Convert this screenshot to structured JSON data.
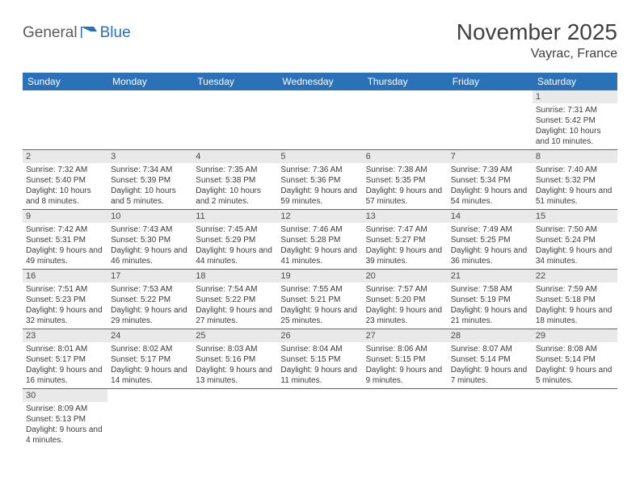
{
  "logo": {
    "part1": "General",
    "part2": "Blue"
  },
  "title": "November 2025",
  "location": "Vayrac, France",
  "colors": {
    "header_bg": "#2a71b8",
    "header_text": "#ffffff",
    "daynum_bg": "#e9e9e9",
    "body_text": "#3a3a3a",
    "page_bg": "#ffffff",
    "cell_border": "#2a71b8"
  },
  "weekdays": [
    "Sunday",
    "Monday",
    "Tuesday",
    "Wednesday",
    "Thursday",
    "Friday",
    "Saturday"
  ],
  "grid": [
    [
      null,
      null,
      null,
      null,
      null,
      null,
      {
        "n": "1",
        "sunrise": "7:31 AM",
        "sunset": "5:42 PM",
        "daylight": "10 hours and 10 minutes."
      }
    ],
    [
      {
        "n": "2",
        "sunrise": "7:32 AM",
        "sunset": "5:40 PM",
        "daylight": "10 hours and 8 minutes."
      },
      {
        "n": "3",
        "sunrise": "7:34 AM",
        "sunset": "5:39 PM",
        "daylight": "10 hours and 5 minutes."
      },
      {
        "n": "4",
        "sunrise": "7:35 AM",
        "sunset": "5:38 PM",
        "daylight": "10 hours and 2 minutes."
      },
      {
        "n": "5",
        "sunrise": "7:36 AM",
        "sunset": "5:36 PM",
        "daylight": "9 hours and 59 minutes."
      },
      {
        "n": "6",
        "sunrise": "7:38 AM",
        "sunset": "5:35 PM",
        "daylight": "9 hours and 57 minutes."
      },
      {
        "n": "7",
        "sunrise": "7:39 AM",
        "sunset": "5:34 PM",
        "daylight": "9 hours and 54 minutes."
      },
      {
        "n": "8",
        "sunrise": "7:40 AM",
        "sunset": "5:32 PM",
        "daylight": "9 hours and 51 minutes."
      }
    ],
    [
      {
        "n": "9",
        "sunrise": "7:42 AM",
        "sunset": "5:31 PM",
        "daylight": "9 hours and 49 minutes."
      },
      {
        "n": "10",
        "sunrise": "7:43 AM",
        "sunset": "5:30 PM",
        "daylight": "9 hours and 46 minutes."
      },
      {
        "n": "11",
        "sunrise": "7:45 AM",
        "sunset": "5:29 PM",
        "daylight": "9 hours and 44 minutes."
      },
      {
        "n": "12",
        "sunrise": "7:46 AM",
        "sunset": "5:28 PM",
        "daylight": "9 hours and 41 minutes."
      },
      {
        "n": "13",
        "sunrise": "7:47 AM",
        "sunset": "5:27 PM",
        "daylight": "9 hours and 39 minutes."
      },
      {
        "n": "14",
        "sunrise": "7:49 AM",
        "sunset": "5:25 PM",
        "daylight": "9 hours and 36 minutes."
      },
      {
        "n": "15",
        "sunrise": "7:50 AM",
        "sunset": "5:24 PM",
        "daylight": "9 hours and 34 minutes."
      }
    ],
    [
      {
        "n": "16",
        "sunrise": "7:51 AM",
        "sunset": "5:23 PM",
        "daylight": "9 hours and 32 minutes."
      },
      {
        "n": "17",
        "sunrise": "7:53 AM",
        "sunset": "5:22 PM",
        "daylight": "9 hours and 29 minutes."
      },
      {
        "n": "18",
        "sunrise": "7:54 AM",
        "sunset": "5:22 PM",
        "daylight": "9 hours and 27 minutes."
      },
      {
        "n": "19",
        "sunrise": "7:55 AM",
        "sunset": "5:21 PM",
        "daylight": "9 hours and 25 minutes."
      },
      {
        "n": "20",
        "sunrise": "7:57 AM",
        "sunset": "5:20 PM",
        "daylight": "9 hours and 23 minutes."
      },
      {
        "n": "21",
        "sunrise": "7:58 AM",
        "sunset": "5:19 PM",
        "daylight": "9 hours and 21 minutes."
      },
      {
        "n": "22",
        "sunrise": "7:59 AM",
        "sunset": "5:18 PM",
        "daylight": "9 hours and 18 minutes."
      }
    ],
    [
      {
        "n": "23",
        "sunrise": "8:01 AM",
        "sunset": "5:17 PM",
        "daylight": "9 hours and 16 minutes."
      },
      {
        "n": "24",
        "sunrise": "8:02 AM",
        "sunset": "5:17 PM",
        "daylight": "9 hours and 14 minutes."
      },
      {
        "n": "25",
        "sunrise": "8:03 AM",
        "sunset": "5:16 PM",
        "daylight": "9 hours and 13 minutes."
      },
      {
        "n": "26",
        "sunrise": "8:04 AM",
        "sunset": "5:15 PM",
        "daylight": "9 hours and 11 minutes."
      },
      {
        "n": "27",
        "sunrise": "8:06 AM",
        "sunset": "5:15 PM",
        "daylight": "9 hours and 9 minutes."
      },
      {
        "n": "28",
        "sunrise": "8:07 AM",
        "sunset": "5:14 PM",
        "daylight": "9 hours and 7 minutes."
      },
      {
        "n": "29",
        "sunrise": "8:08 AM",
        "sunset": "5:14 PM",
        "daylight": "9 hours and 5 minutes."
      }
    ],
    [
      {
        "n": "30",
        "sunrise": "8:09 AM",
        "sunset": "5:13 PM",
        "daylight": "9 hours and 4 minutes."
      },
      null,
      null,
      null,
      null,
      null,
      null
    ]
  ],
  "labels": {
    "sunrise": "Sunrise:",
    "sunset": "Sunset:",
    "daylight": "Daylight:"
  }
}
